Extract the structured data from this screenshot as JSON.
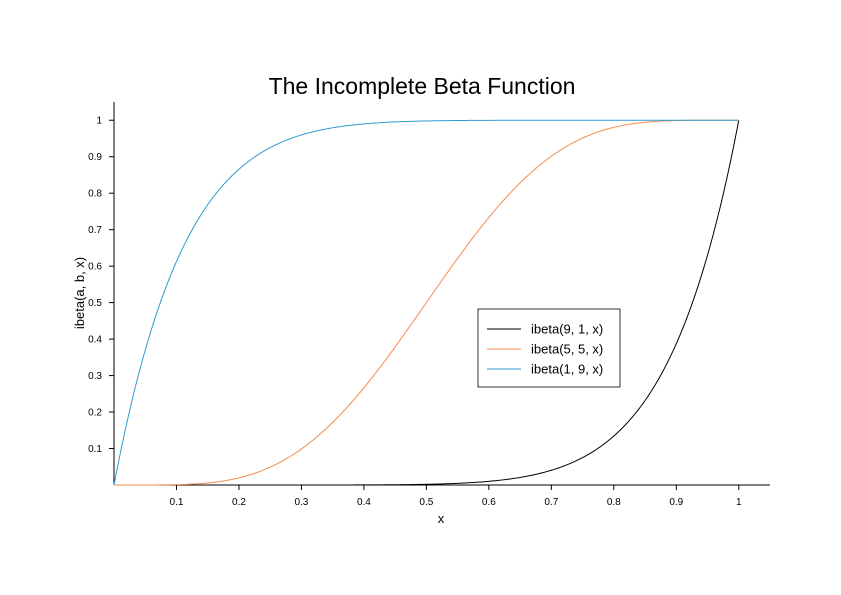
{
  "chart_data": {
    "type": "line",
    "title": "The Incomplete Beta Function",
    "xlabel": "x",
    "ylabel": "ibeta(a, b, x)",
    "xlim": [
      0,
      1.05
    ],
    "ylim": [
      0,
      1.05
    ],
    "x_ticks": [
      0.1,
      0.2,
      0.3,
      0.4,
      0.5,
      0.6,
      0.7,
      0.8,
      0.9,
      1
    ],
    "y_ticks": [
      0.1,
      0.2,
      0.3,
      0.4,
      0.5,
      0.6,
      0.7,
      0.8,
      0.9,
      1
    ],
    "x_tick_labels": [
      "0.1",
      "0.2",
      "0.3",
      "0.4",
      "0.5",
      "0.6",
      "0.7",
      "0.8",
      "0.9",
      "1"
    ],
    "y_tick_labels": [
      "0.1",
      "0.2",
      "0.3",
      "0.4",
      "0.5",
      "0.6",
      "0.7",
      "0.8",
      "0.9",
      "1"
    ],
    "grid": false,
    "legend_position": "center-right",
    "x": [
      0,
      0.05,
      0.1,
      0.15,
      0.2,
      0.25,
      0.3,
      0.35,
      0.4,
      0.45,
      0.5,
      0.55,
      0.6,
      0.65,
      0.7,
      0.75,
      0.8,
      0.85,
      0.9,
      0.95,
      1
    ],
    "series": [
      {
        "name": "ibeta(9, 1, x)",
        "color": "#000000",
        "a": 9,
        "b": 1,
        "values": [
          0,
          0,
          0,
          0,
          1e-06,
          4e-06,
          2e-05,
          8e-05,
          0.00026,
          0.00076,
          0.00195,
          0.0046,
          0.0101,
          0.0207,
          0.0404,
          0.0751,
          0.1342,
          0.2316,
          0.3874,
          0.6302,
          1
        ]
      },
      {
        "name": "ibeta(5, 5, x)",
        "color": "#f28e4d",
        "a": 5,
        "b": 5,
        "values": [
          0,
          0.0006,
          0.0009,
          0.0056,
          0.0196,
          0.0489,
          0.0988,
          0.1717,
          0.2666,
          0.3786,
          0.5,
          0.6214,
          0.7334,
          0.8283,
          0.9012,
          0.9511,
          0.9804,
          0.9944,
          0.9991,
          0.9999,
          1
        ]
      },
      {
        "name": "ibeta(1, 9, x)",
        "color": "#2f9bd1",
        "a": 1,
        "b": 9,
        "values": [
          0,
          0.3698,
          0.6126,
          0.7684,
          0.8658,
          0.9249,
          0.9596,
          0.9793,
          0.9899,
          0.9954,
          0.998,
          0.9992,
          0.9997,
          0.9999,
          1,
          1,
          1,
          1,
          1,
          1,
          1
        ]
      }
    ]
  }
}
